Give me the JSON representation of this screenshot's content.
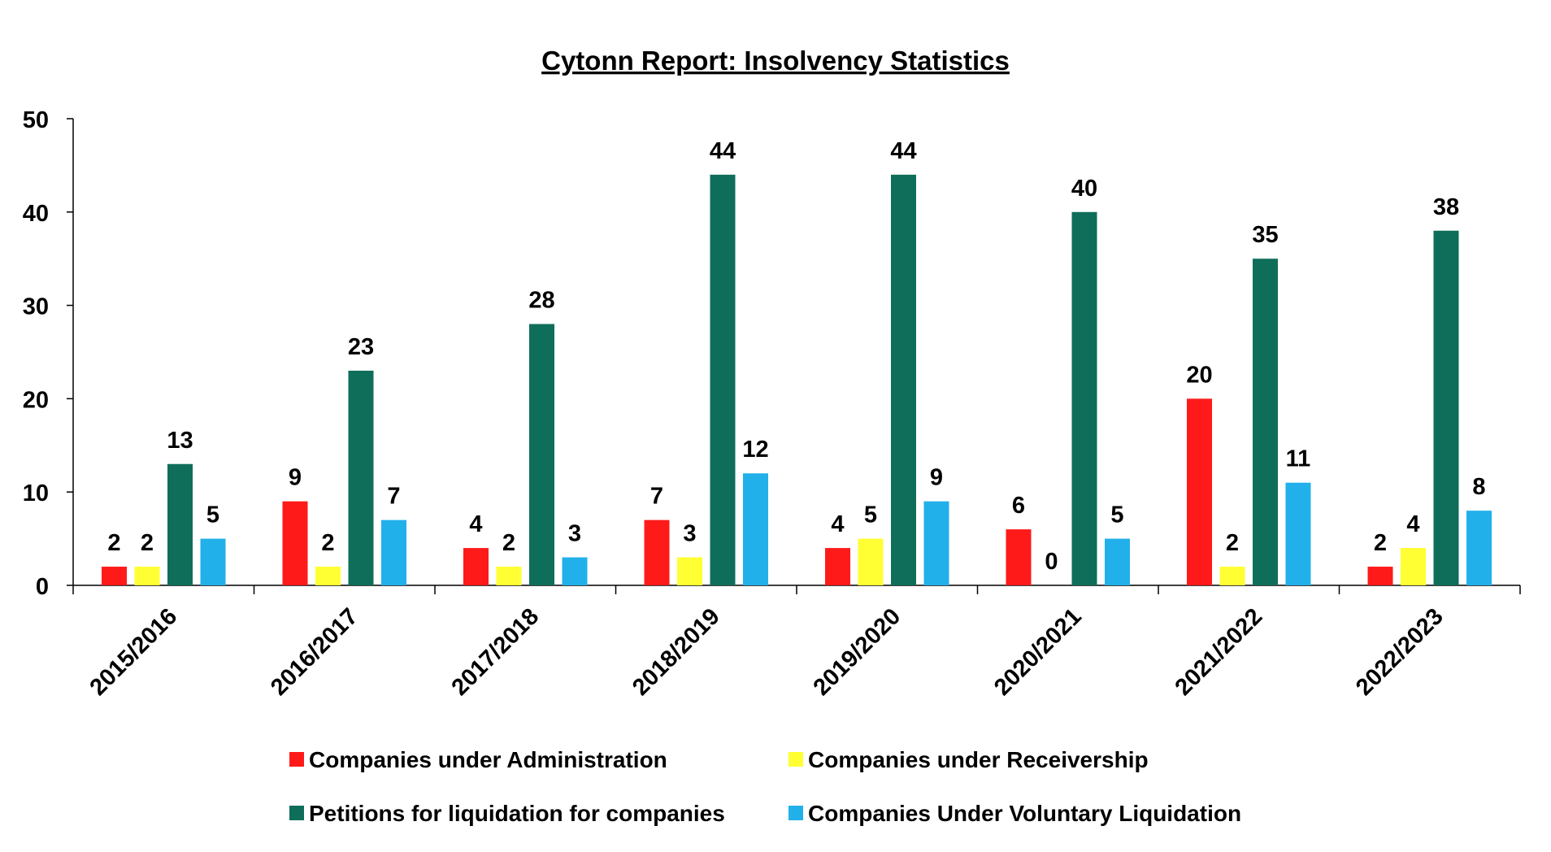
{
  "chart_data": {
    "type": "bar",
    "title": "Cytonn Report: Insolvency Statistics",
    "xlabel": "",
    "ylabel": "",
    "ylim": [
      0,
      50
    ],
    "yticks": [
      0,
      10,
      20,
      30,
      40,
      50
    ],
    "grid": false,
    "legend_position": "bottom",
    "categories": [
      "2015/2016",
      "2016/2017",
      "2017/2018",
      "2018/2019",
      "2019/2020",
      "2020/2021",
      "2021/2022",
      "2022/2023"
    ],
    "series": [
      {
        "name": "Companies under Administration",
        "color": "#ff1a1a",
        "values": [
          2,
          9,
          4,
          7,
          4,
          6,
          20,
          2
        ]
      },
      {
        "name": "Companies under Receivership",
        "color": "#ffff33",
        "values": [
          2,
          2,
          2,
          3,
          5,
          0,
          2,
          4
        ]
      },
      {
        "name": "Petitions for liquidation for companies",
        "color": "#0f6e5a",
        "values": [
          13,
          23,
          28,
          44,
          44,
          40,
          35,
          38
        ]
      },
      {
        "name": "Companies Under Voluntary Liquidation",
        "color": "#22b0ea",
        "values": [
          5,
          7,
          3,
          12,
          9,
          5,
          11,
          8
        ]
      }
    ]
  }
}
